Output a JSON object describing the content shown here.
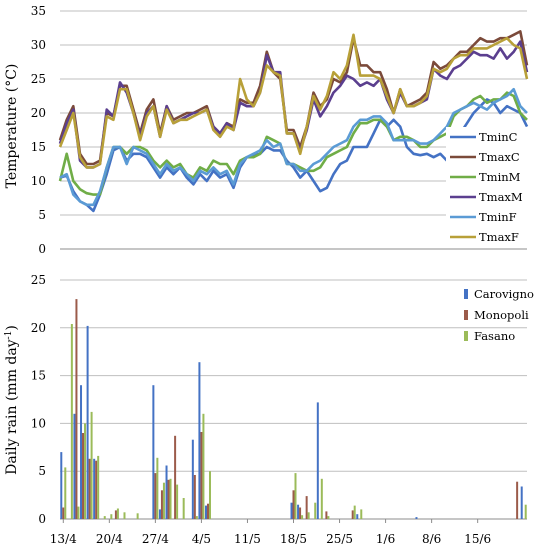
{
  "chart_data": [
    {
      "type": "line",
      "ylabel": "Temperature (°C)",
      "ylim": [
        0,
        35
      ],
      "yticks": [
        0,
        5,
        10,
        15,
        20,
        25,
        30,
        35
      ],
      "grid": true,
      "legend_placement": "right",
      "colors": {
        "TminC": "#4472c4",
        "TmaxC": "#7b4a3a",
        "TminM": "#70ad47",
        "TmaxM": "#5b3f8f",
        "TminF": "#5b9bd5",
        "TmaxF": "#b8a038"
      },
      "series": [
        {
          "name": "TminC",
          "values": [
            10.5,
            10.8,
            8.5,
            7,
            6.5,
            5.6,
            8,
            11,
            14.5,
            15,
            13,
            14,
            14,
            13.5,
            12,
            10.5,
            12,
            11,
            12,
            10.5,
            9.5,
            11,
            10,
            11.5,
            10.5,
            11,
            9,
            12,
            13.5,
            13.8,
            14,
            15,
            14.5,
            14.5,
            13,
            12,
            10.5,
            11.5,
            10,
            8.5,
            9,
            11,
            12.5,
            13,
            15,
            15,
            15,
            17,
            19,
            18,
            19,
            18,
            15,
            14,
            13.8,
            14,
            13.5,
            14,
            13,
            16,
            17,
            18.5,
            20,
            21,
            22,
            21.5,
            20,
            21,
            20.5,
            20,
            18
          ]
        },
        {
          "name": "TmaxC",
          "values": [
            16,
            19,
            21,
            14,
            12.5,
            12.5,
            13,
            20,
            19.5,
            24,
            24,
            20.5,
            17,
            20.5,
            22,
            17,
            21,
            19,
            19.5,
            20,
            20,
            20.5,
            21,
            18,
            17,
            18.5,
            18,
            22,
            21.5,
            21.5,
            24,
            29,
            26,
            25,
            17.5,
            17.5,
            15,
            18,
            23,
            21,
            22,
            25,
            24.5,
            26,
            31,
            27,
            27,
            26,
            26,
            23.5,
            20,
            23.5,
            21,
            21.5,
            22,
            23,
            27.5,
            26.5,
            27,
            28,
            29,
            29,
            30,
            31,
            30.5,
            30.5,
            31,
            31,
            31.5,
            32,
            27
          ]
        },
        {
          "name": "TminM",
          "values": [
            10,
            14,
            10,
            8.8,
            8.2,
            8,
            8,
            12,
            15,
            15,
            14,
            15,
            15,
            14.5,
            13,
            12,
            13,
            12,
            12.5,
            11,
            10.5,
            12,
            11.5,
            13,
            12.5,
            12.5,
            11,
            13,
            13.5,
            13.5,
            14,
            16.5,
            16,
            15.5,
            12.5,
            12.5,
            12,
            11.5,
            11.5,
            12,
            13.5,
            14,
            14.5,
            15,
            17,
            18.5,
            18.5,
            19,
            19,
            18,
            16,
            16.5,
            16.5,
            16,
            15,
            15,
            16,
            16.5,
            17,
            19.5,
            20.5,
            21,
            22,
            22.5,
            21.5,
            22,
            22,
            23,
            22.5,
            20,
            19
          ]
        },
        {
          "name": "TmaxM",
          "values": [
            15.5,
            18.5,
            20.5,
            13,
            12,
            12,
            12.5,
            20.5,
            19.5,
            24.5,
            23,
            20,
            16.5,
            20,
            21,
            16.5,
            21,
            18.5,
            19,
            19.5,
            20,
            20,
            20.5,
            18,
            17,
            18.5,
            17.5,
            21.5,
            21,
            21,
            23,
            28.5,
            26,
            26,
            17,
            17,
            14.5,
            17.5,
            22,
            19.5,
            21,
            23,
            24,
            25.5,
            25,
            24,
            24.5,
            24,
            25,
            22,
            20,
            23,
            21,
            21,
            21.5,
            22,
            26.5,
            25.5,
            25,
            26.5,
            27,
            28,
            29,
            28.5,
            28.5,
            28,
            29.5,
            28,
            29,
            30.5,
            26
          ]
        },
        {
          "name": "TminF",
          "values": [
            10.5,
            11,
            8,
            7,
            6.5,
            6.5,
            8.5,
            12,
            15,
            15,
            12.5,
            15,
            14.5,
            14,
            12.5,
            11,
            12.5,
            11.5,
            12,
            11,
            10,
            11.5,
            11,
            12,
            11,
            11.5,
            9.5,
            12.5,
            13.5,
            14,
            14.5,
            16,
            15,
            15.5,
            12.5,
            12.5,
            11.5,
            11.5,
            12.5,
            13,
            14,
            15,
            15.5,
            16,
            18,
            19,
            19,
            19.5,
            19.5,
            18.5,
            16,
            16,
            16,
            16,
            15.5,
            15.5,
            16,
            17,
            18,
            20,
            20.5,
            21,
            21.5,
            21,
            20.5,
            21.5,
            22,
            22.5,
            23.5,
            21,
            20
          ]
        },
        {
          "name": "TmaxF",
          "values": [
            15,
            17.5,
            20,
            13.5,
            12,
            12,
            12.5,
            19.5,
            19,
            23.5,
            23.5,
            20,
            16,
            19.5,
            21,
            16.5,
            20.5,
            18.5,
            19,
            19,
            19.5,
            20,
            20.5,
            17.5,
            16.5,
            18,
            17.5,
            25,
            22,
            21,
            23,
            27,
            26,
            25.5,
            17,
            17,
            14,
            18,
            22.5,
            20.5,
            22.5,
            26,
            25,
            27,
            31.5,
            25.5,
            25.5,
            25.5,
            25,
            22.5,
            20,
            23.5,
            21,
            21,
            21.5,
            22.5,
            26.5,
            26,
            26.5,
            28,
            28.5,
            28.5,
            29.5,
            29.5,
            29.5,
            30,
            30.5,
            31,
            30,
            29.5,
            25
          ]
        }
      ]
    },
    {
      "type": "bar",
      "ylabel": "Daily rain (mm day-1)",
      "ylabel_main": "Daily rain (mm day",
      "ylabel_sup": "-1",
      "ylabel_end": ")",
      "ylim": [
        0,
        25
      ],
      "yticks": [
        0,
        5,
        10,
        15,
        20,
        25
      ],
      "grid": true,
      "legend_placement": "top-right",
      "x_tick_labels": [
        "13/4",
        "20/4",
        "27/4",
        "4/5",
        "11/5",
        "18/5",
        "25/5",
        "1/6",
        "8/6",
        "15/6"
      ],
      "colors": {
        "Carovigno": "#4472c4",
        "Monopoli": "#9b5b4a",
        "Fasano": "#9bbb59"
      },
      "series": [
        {
          "name": "Carovigno",
          "values": [
            7,
            0,
            11,
            14,
            20.2,
            6.3,
            0,
            0,
            0,
            0,
            0,
            0,
            0,
            0,
            14,
            1,
            5.6,
            0,
            0,
            0,
            8.3,
            16.4,
            1.4,
            0,
            0,
            0,
            0,
            0,
            0,
            0,
            0,
            0,
            0,
            0,
            0,
            1.7,
            1.5,
            0,
            0,
            12.2,
            0,
            0,
            0,
            0,
            0,
            0.5,
            0,
            0,
            0,
            0,
            0,
            0,
            0,
            0,
            0.2,
            0,
            0,
            0,
            0,
            0,
            0,
            0,
            0,
            0,
            0,
            0,
            0,
            0,
            0,
            0,
            3.4
          ]
        },
        {
          "name": "Monopoli",
          "values": [
            1.2,
            0,
            23,
            9,
            6.3,
            6.1,
            0,
            0,
            0.9,
            0,
            0,
            0,
            0,
            0,
            4.8,
            3,
            4.1,
            8.7,
            0,
            0,
            4.6,
            9.1,
            1.6,
            0,
            0,
            0,
            0,
            0,
            0,
            0,
            0,
            0,
            0,
            0,
            0,
            3,
            1.2,
            2.4,
            0,
            0,
            0.8,
            0,
            0,
            0,
            0.9,
            0,
            0,
            0,
            0,
            0,
            0,
            0,
            0,
            0,
            0,
            0,
            0,
            0,
            0,
            0,
            0,
            0,
            0,
            0,
            0,
            0,
            0,
            0,
            0,
            3.9,
            0
          ]
        },
        {
          "name": "Fasano",
          "values": [
            5.4,
            20.4,
            1.3,
            10,
            11.2,
            6.6,
            0.3,
            0.5,
            1.1,
            0.7,
            0,
            0.6,
            0,
            0,
            6.4,
            3.8,
            4.2,
            3.6,
            2.2,
            0,
            0.3,
            11,
            5,
            0,
            0,
            0,
            0,
            0,
            0,
            0,
            0,
            0,
            0,
            0,
            0,
            4.8,
            0.4,
            0.7,
            1.7,
            4.2,
            0.3,
            0,
            0,
            0,
            1.4,
            1,
            0,
            0,
            0,
            0,
            0,
            0,
            0,
            0,
            0,
            0,
            0,
            0,
            0,
            0,
            0,
            0,
            0,
            0,
            0,
            0,
            0,
            0,
            0,
            0,
            1.5
          ]
        }
      ]
    }
  ]
}
